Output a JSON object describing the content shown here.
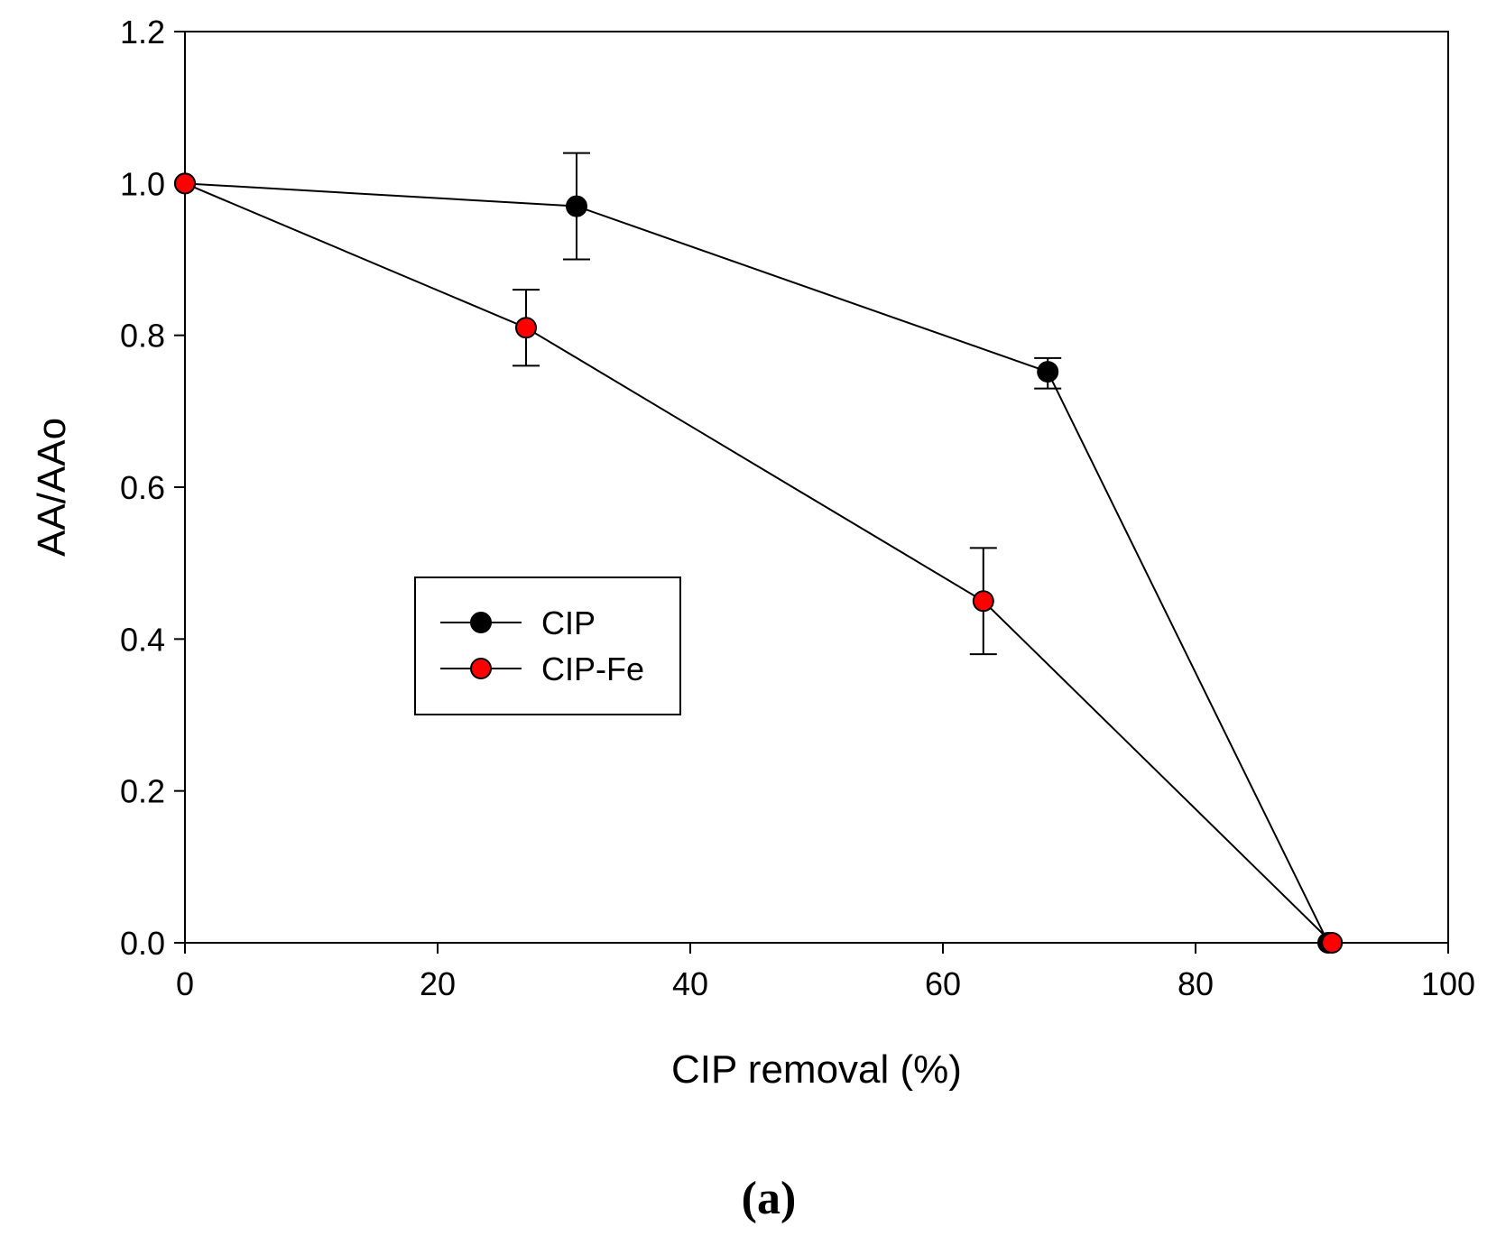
{
  "chart_data": {
    "type": "line",
    "xlabel": "CIP removal (%)",
    "ylabel": "AA/AAo",
    "xlim": [
      0,
      100
    ],
    "ylim": [
      0,
      1.2
    ],
    "x_ticks": [
      0,
      20,
      40,
      60,
      80,
      100
    ],
    "x_tick_labels": [
      "0",
      "20",
      "40",
      "60",
      "80",
      "100"
    ],
    "y_ticks": [
      0,
      0.2,
      0.4,
      0.6,
      0.8,
      1.0,
      1.2
    ],
    "y_tick_labels": [
      "0.0",
      "0.2",
      "0.4",
      "0.6",
      "0.8",
      "1.0",
      "1.2"
    ],
    "grid": false,
    "legend_position": "center-left",
    "panel_label": "(a)",
    "series": [
      {
        "name": "CIP",
        "marker_color": "#000000",
        "points": [
          {
            "x": 0,
            "y": 1.0
          },
          {
            "x": 31,
            "y": 0.97,
            "err_low": 0.9,
            "err_high": 1.04
          },
          {
            "x": 68.3,
            "y": 0.752,
            "err_low": 0.73,
            "err_high": 0.77
          },
          {
            "x": 90.5,
            "y": 0.0
          }
        ]
      },
      {
        "name": "CIP-Fe",
        "marker_color": "#ff0000",
        "points": [
          {
            "x": 0,
            "y": 1.0
          },
          {
            "x": 27,
            "y": 0.81,
            "err_low": 0.76,
            "err_high": 0.86
          },
          {
            "x": 63.2,
            "y": 0.45,
            "err_low": 0.38,
            "err_high": 0.52
          },
          {
            "x": 90.8,
            "y": 0.0
          }
        ]
      }
    ]
  }
}
